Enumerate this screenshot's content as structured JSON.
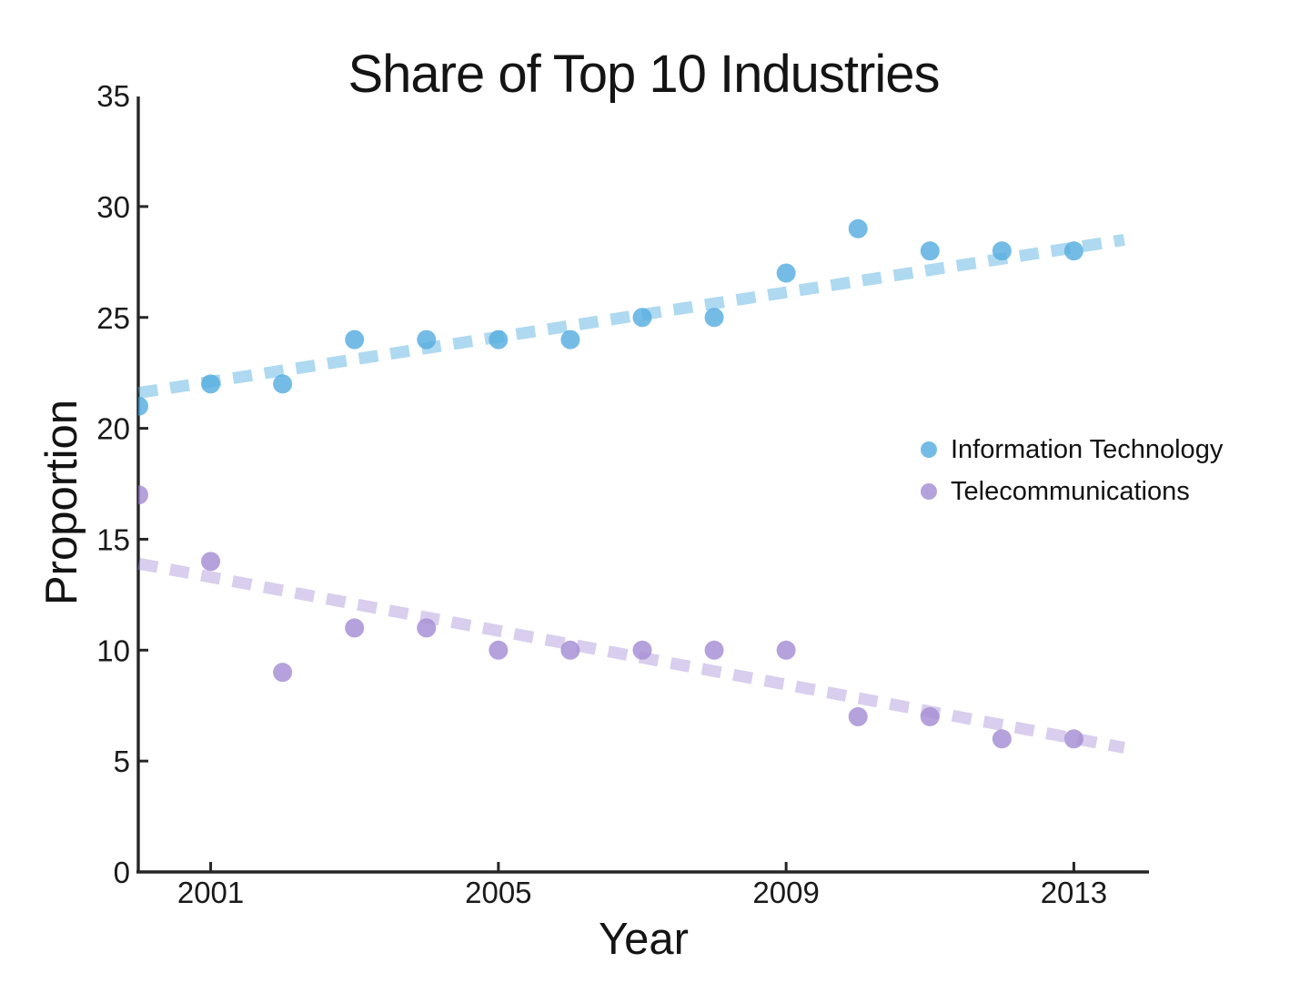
{
  "chart_data": {
    "type": "scatter",
    "title": "Share of Top 10 Industries",
    "xlabel": "Year",
    "ylabel": "Proportion",
    "xlim": [
      2000,
      2014
    ],
    "ylim": [
      0,
      35
    ],
    "xticks": [
      2001,
      2005,
      2009,
      2013
    ],
    "yticks": [
      0,
      5,
      10,
      15,
      20,
      25,
      30,
      35
    ],
    "grid": false,
    "legend_position": "center-right",
    "x": [
      2000,
      2001,
      2002,
      2003,
      2004,
      2005,
      2006,
      2007,
      2008,
      2009,
      2010,
      2011,
      2012,
      2013
    ],
    "series": [
      {
        "name": "Information Technology",
        "marker_color": "#3ea2dc",
        "marker_opacity": 0.72,
        "trend_color": "#55b0e0",
        "trend_opacity": 0.48,
        "values": [
          21,
          22,
          22,
          24,
          24,
          24,
          24,
          25,
          25,
          27,
          29,
          28,
          28,
          28
        ],
        "trend": {
          "x1": 2000,
          "v1": 21.6,
          "x2": 2013.7,
          "v2": 28.5
        }
      },
      {
        "name": "Telecommunications",
        "marker_color": "#9579cc",
        "marker_opacity": 0.7,
        "trend_color": "#a98fd6",
        "trend_opacity": 0.44,
        "values": [
          17,
          14,
          9,
          11,
          11,
          10,
          10,
          10,
          10,
          10,
          7,
          7,
          6,
          6
        ],
        "trend": {
          "x1": 2000,
          "v1": 13.9,
          "x2": 2013.7,
          "v2": 5.6
        }
      }
    ],
    "axis_color": "#262626",
    "text_color": "#141414"
  }
}
